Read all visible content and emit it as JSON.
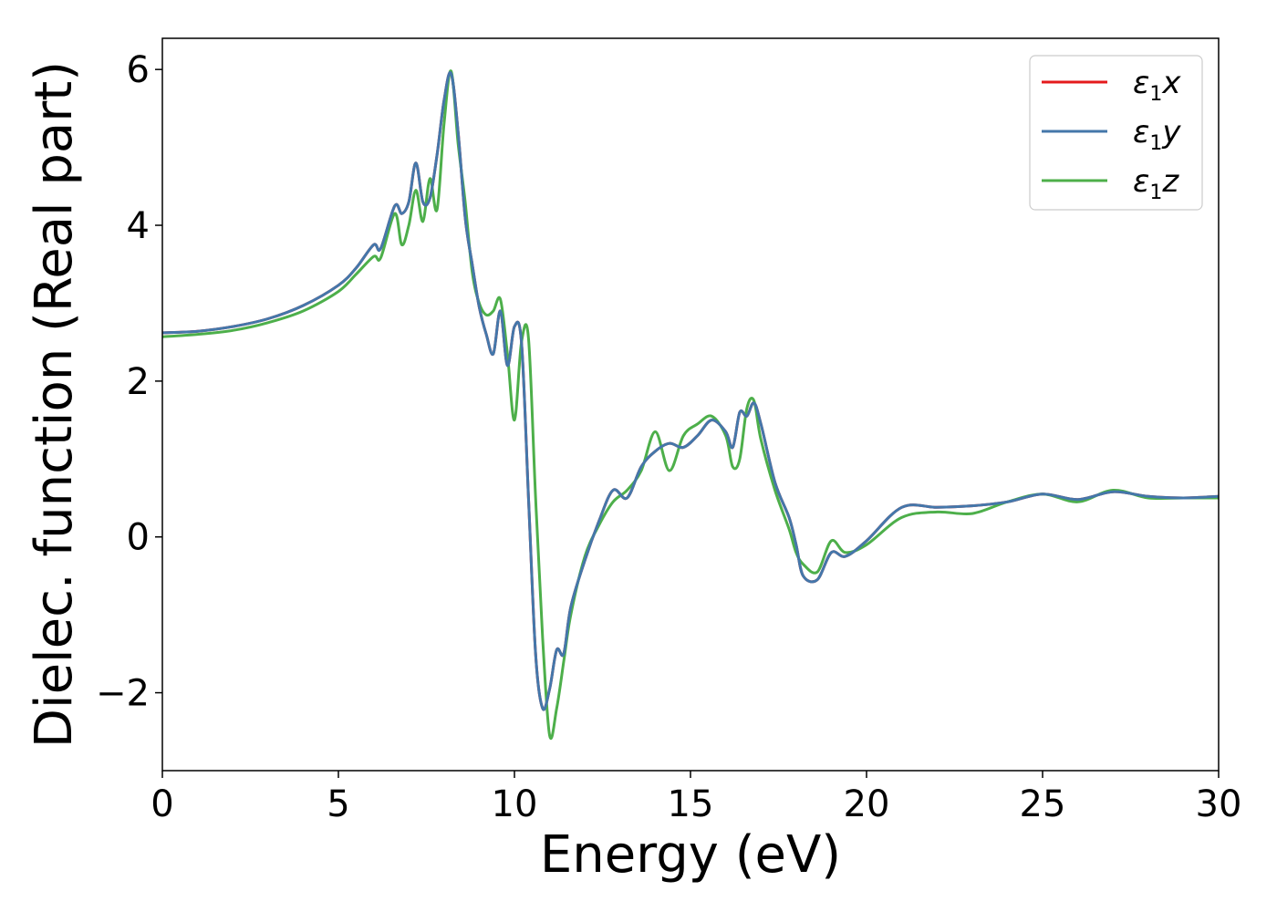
{
  "chart_data": {
    "type": "line",
    "xlabel": "Energy (eV)",
    "ylabel": "Dielec. function (Real part)",
    "xlim": [
      0,
      30
    ],
    "ylim": [
      -3.0,
      6.4
    ],
    "xticks": [
      0,
      5,
      10,
      15,
      20,
      25,
      30
    ],
    "yticks": [
      -2,
      0,
      2,
      4,
      6
    ],
    "xtick_labels": [
      "0",
      "5",
      "10",
      "15",
      "20",
      "25",
      "30"
    ],
    "ytick_labels": [
      "−2",
      "0",
      "2",
      "4",
      "6"
    ],
    "grid": false,
    "legend_position": "top-right",
    "series": [
      {
        "name": "ε1x",
        "legend_main": "ε",
        "legend_sub": "1",
        "legend_var": "x",
        "color": "#e41a1c",
        "x": [
          0,
          1,
          2,
          3,
          4,
          5,
          5.5,
          6.0,
          6.2,
          6.6,
          6.8,
          7.0,
          7.2,
          7.4,
          7.6,
          7.8,
          8.0,
          8.2,
          8.4,
          8.6,
          8.8,
          9.0,
          9.2,
          9.4,
          9.6,
          9.8,
          10.0,
          10.2,
          10.4,
          10.6,
          10.8,
          11.0,
          11.2,
          11.4,
          11.6,
          12.0,
          12.4,
          12.8,
          13.2,
          13.6,
          14.0,
          14.4,
          14.8,
          15.2,
          15.6,
          16.0,
          16.2,
          16.4,
          16.6,
          16.8,
          17.0,
          17.4,
          17.8,
          18.0,
          18.2,
          18.6,
          19.0,
          19.4,
          20.0,
          21.0,
          22.0,
          23.0,
          24.0,
          25.0,
          26.0,
          27.0,
          28.0,
          29.0,
          30.0
        ],
        "y": [
          2.62,
          2.64,
          2.7,
          2.8,
          2.97,
          3.23,
          3.45,
          3.75,
          3.7,
          4.25,
          4.15,
          4.3,
          4.8,
          4.3,
          4.35,
          4.9,
          5.6,
          5.95,
          5.2,
          4.1,
          3.5,
          2.95,
          2.6,
          2.35,
          2.9,
          2.2,
          2.7,
          2.5,
          0.5,
          -1.5,
          -2.2,
          -1.95,
          -1.45,
          -1.5,
          -0.9,
          -0.3,
          0.2,
          0.6,
          0.5,
          0.9,
          1.1,
          1.2,
          1.15,
          1.3,
          1.5,
          1.35,
          1.15,
          1.6,
          1.55,
          1.72,
          1.45,
          0.7,
          0.25,
          -0.1,
          -0.5,
          -0.55,
          -0.2,
          -0.25,
          -0.05,
          0.38,
          0.38,
          0.4,
          0.45,
          0.55,
          0.48,
          0.58,
          0.52,
          0.5,
          0.52
        ]
      },
      {
        "name": "ε1y",
        "legend_main": "ε",
        "legend_sub": "1",
        "legend_var": "y",
        "color": "#4477aa",
        "x": [
          0,
          1,
          2,
          3,
          4,
          5,
          5.5,
          6.0,
          6.2,
          6.6,
          6.8,
          7.0,
          7.2,
          7.4,
          7.6,
          7.8,
          8.0,
          8.2,
          8.4,
          8.6,
          8.8,
          9.0,
          9.2,
          9.4,
          9.6,
          9.8,
          10.0,
          10.2,
          10.4,
          10.6,
          10.8,
          11.0,
          11.2,
          11.4,
          11.6,
          12.0,
          12.4,
          12.8,
          13.2,
          13.6,
          14.0,
          14.4,
          14.8,
          15.2,
          15.6,
          16.0,
          16.2,
          16.4,
          16.6,
          16.8,
          17.0,
          17.4,
          17.8,
          18.0,
          18.2,
          18.6,
          19.0,
          19.4,
          20.0,
          21.0,
          22.0,
          23.0,
          24.0,
          25.0,
          26.0,
          27.0,
          28.0,
          29.0,
          30.0
        ],
        "y": [
          2.62,
          2.64,
          2.7,
          2.8,
          2.97,
          3.23,
          3.45,
          3.75,
          3.7,
          4.25,
          4.15,
          4.3,
          4.8,
          4.3,
          4.35,
          4.9,
          5.6,
          5.95,
          5.2,
          4.1,
          3.5,
          2.95,
          2.6,
          2.35,
          2.9,
          2.2,
          2.7,
          2.5,
          0.5,
          -1.5,
          -2.2,
          -1.95,
          -1.45,
          -1.5,
          -0.9,
          -0.3,
          0.2,
          0.6,
          0.5,
          0.9,
          1.1,
          1.2,
          1.15,
          1.3,
          1.5,
          1.35,
          1.15,
          1.6,
          1.55,
          1.72,
          1.45,
          0.7,
          0.25,
          -0.1,
          -0.5,
          -0.55,
          -0.2,
          -0.25,
          -0.05,
          0.38,
          0.38,
          0.4,
          0.45,
          0.55,
          0.48,
          0.58,
          0.52,
          0.5,
          0.52
        ]
      },
      {
        "name": "ε1z",
        "legend_main": "ε",
        "legend_sub": "1",
        "legend_var": "z",
        "color": "#4daf4a",
        "x": [
          0,
          1,
          2,
          3,
          4,
          5,
          5.5,
          6.0,
          6.2,
          6.6,
          6.8,
          7.0,
          7.2,
          7.4,
          7.6,
          7.8,
          8.0,
          8.2,
          8.4,
          8.6,
          8.8,
          9.0,
          9.2,
          9.4,
          9.6,
          9.8,
          10.0,
          10.2,
          10.4,
          10.6,
          10.8,
          11.0,
          11.2,
          11.4,
          11.6,
          12.0,
          12.4,
          12.8,
          13.2,
          13.6,
          14.0,
          14.4,
          14.8,
          15.2,
          15.6,
          16.0,
          16.2,
          16.4,
          16.6,
          16.8,
          17.0,
          17.4,
          17.8,
          18.0,
          18.2,
          18.6,
          19.0,
          19.4,
          20.0,
          21.0,
          22.0,
          23.0,
          24.0,
          25.0,
          26.0,
          27.0,
          28.0,
          29.0,
          30.0
        ],
        "y": [
          2.57,
          2.6,
          2.65,
          2.75,
          2.9,
          3.15,
          3.37,
          3.6,
          3.58,
          4.15,
          3.75,
          4.0,
          4.45,
          4.05,
          4.6,
          4.2,
          5.3,
          5.98,
          5.05,
          4.3,
          3.4,
          3.0,
          2.85,
          2.9,
          3.05,
          2.35,
          1.5,
          2.5,
          2.55,
          0.5,
          -1.3,
          -2.55,
          -2.2,
          -1.6,
          -1.0,
          -0.25,
          0.15,
          0.45,
          0.6,
          0.85,
          1.35,
          0.85,
          1.3,
          1.45,
          1.55,
          1.3,
          0.9,
          1.0,
          1.65,
          1.75,
          1.25,
          0.6,
          0.1,
          -0.2,
          -0.35,
          -0.45,
          -0.05,
          -0.2,
          -0.1,
          0.25,
          0.32,
          0.3,
          0.45,
          0.55,
          0.45,
          0.6,
          0.5,
          0.5,
          0.5
        ]
      }
    ]
  }
}
